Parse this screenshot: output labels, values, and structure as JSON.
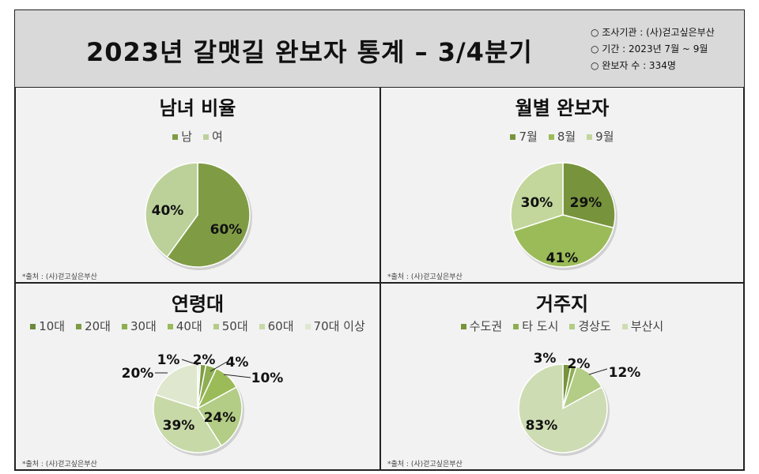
{
  "header": {
    "title": "2023년 갈맷길 완보자 통계 – 3/4분기",
    "info": [
      "○ 조사기관 : (사)걷고싶은부산",
      "○ 기간 : 2023년 7월 ~ 9월",
      "○ 완보자 수 : 334명"
    ]
  },
  "source": "*출처 : (사)걷고싶은부산",
  "chart_data": [
    {
      "type": "pie",
      "title": "남녀 비율",
      "categories": [
        "남",
        "여"
      ],
      "values": [
        60,
        40
      ],
      "colors": [
        "#7f9c45",
        "#bcd19a"
      ],
      "legend": "top"
    },
    {
      "type": "pie",
      "title": "월별 완보자",
      "categories": [
        "7월",
        "8월",
        "9월"
      ],
      "values": [
        29,
        41,
        30
      ],
      "colors": [
        "#77933c",
        "#9bbb59",
        "#c3d69b"
      ],
      "legend": "top"
    },
    {
      "type": "pie",
      "title": "연령대",
      "categories": [
        "10대",
        "20대",
        "30대",
        "40대",
        "50대",
        "60대",
        "70대 이상"
      ],
      "values": [
        1,
        2,
        4,
        10,
        24,
        39,
        20
      ],
      "colors": [
        "#e8eedc",
        "#7f9c45",
        "#8fae52",
        "#9bbb59",
        "#b3cc86",
        "#c8d9a8",
        "#dfe8cf"
      ],
      "legend": "top"
    },
    {
      "type": "pie",
      "title": "거주지",
      "categories": [
        "수도권",
        "타 도시",
        "경상도",
        "부산시"
      ],
      "values": [
        3,
        2,
        12,
        83
      ],
      "colors": [
        "#77933c",
        "#8fae52",
        "#b3cc86",
        "#cddcb2"
      ],
      "legend": "top"
    }
  ]
}
